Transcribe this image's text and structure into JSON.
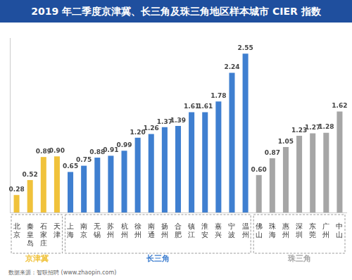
{
  "chart_data": {
    "type": "bar",
    "title": "2019 年二季度京津冀、长三角及珠三角地区样本城市 CIER 指数",
    "source": "数据来源：智联招聘 (www.zhaopin.com)",
    "categories": [
      "北京",
      "秦皇岛",
      "石家庄",
      "天津",
      "上海",
      "南京",
      "无锡",
      "苏州",
      "杭州",
      "徐州",
      "南通",
      "扬州",
      "合肥",
      "镇江",
      "淮安",
      "嘉兴",
      "宁波",
      "温州",
      "佛山",
      "珠海",
      "惠州",
      "深圳",
      "东莞",
      "广州",
      "中山"
    ],
    "series": [
      {
        "name": "京津冀",
        "color": "#f0c23b",
        "values": [
          0.28,
          0.52,
          0.89,
          0.9,
          null,
          null,
          null,
          null,
          null,
          null,
          null,
          null,
          null,
          null,
          null,
          null,
          null,
          null,
          null,
          null,
          null,
          null,
          null,
          null,
          null
        ],
        "value_labels": [
          "0.28",
          "0.52",
          "0.89",
          "0.90",
          null,
          null,
          null,
          null,
          null,
          null,
          null,
          null,
          null,
          null,
          null,
          null,
          null,
          null,
          null,
          null,
          null,
          null,
          null,
          null,
          null
        ]
      },
      {
        "name": "长三角",
        "color": "#3f7fd0",
        "values": [
          null,
          null,
          null,
          null,
          0.65,
          0.75,
          0.88,
          0.91,
          0.99,
          1.2,
          1.26,
          1.37,
          1.39,
          1.61,
          1.61,
          1.78,
          2.24,
          2.55,
          null,
          null,
          null,
          null,
          null,
          null,
          null
        ],
        "value_labels": [
          null,
          null,
          null,
          null,
          "0.65",
          "0.75",
          "0.88",
          "0.91",
          "0.99",
          "1.20",
          "1.26",
          "1.37",
          "1.39",
          "1.61",
          "1.61",
          "1.78",
          "2.24",
          "2.55",
          null,
          null,
          null,
          null,
          null,
          null,
          null
        ]
      },
      {
        "name": "珠三角",
        "color": "#a6a6a6",
        "values": [
          null,
          null,
          null,
          null,
          null,
          null,
          null,
          null,
          null,
          null,
          null,
          null,
          null,
          null,
          null,
          null,
          null,
          null,
          0.6,
          0.87,
          1.05,
          1.23,
          1.27,
          1.28,
          1.62
        ],
        "value_labels": [
          null,
          null,
          null,
          null,
          null,
          null,
          null,
          null,
          null,
          null,
          null,
          null,
          null,
          null,
          null,
          null,
          null,
          null,
          "0.60",
          "0.87",
          "1.05",
          "1.23",
          "1.27",
          "1.28",
          "1.62"
        ]
      }
    ],
    "ylim": [
      0,
      2.8
    ],
    "grid": false,
    "data_labels": true,
    "tick_labels": "x"
  }
}
